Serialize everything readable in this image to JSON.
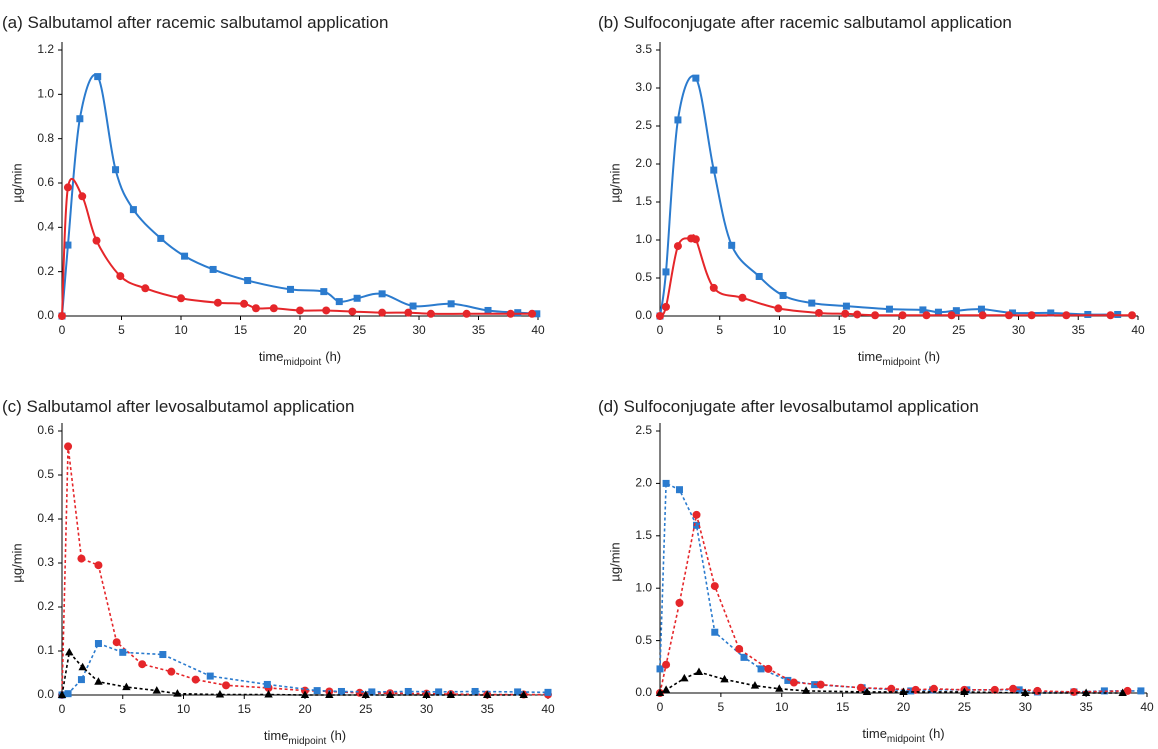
{
  "chart_data": [
    {
      "type": "line",
      "title": "(a) Salbutamol after racemic salbutamol application",
      "ylabel": "µg/min",
      "xlabel": {
        "text": "time",
        "subscript": "midpoint",
        "unit": "(h)"
      },
      "smooth": true,
      "line_style": "solid",
      "xlim": [
        0,
        40
      ],
      "xticks": [
        0,
        5,
        10,
        15,
        20,
        25,
        30,
        35,
        40
      ],
      "ylim": [
        0,
        1.2
      ],
      "yticks": [
        {
          "value": 0,
          "label": "0.0"
        },
        {
          "value": 0.2,
          "label": "0.2"
        },
        {
          "value": 0.4,
          "label": "0.4"
        },
        {
          "value": 0.6,
          "label": "0.6"
        },
        {
          "value": 0.8,
          "label": "0.8"
        },
        {
          "value": 1,
          "label": "1.0"
        },
        {
          "value": 1.2,
          "label": "1.2"
        }
      ],
      "series": [
        {
          "color": "#2b7bce",
          "marker": "square",
          "x": [
            0,
            0.5,
            1.5,
            3,
            4.5,
            6,
            8.3,
            10.3,
            12.7,
            15.6,
            19.2,
            22,
            23.3,
            24.8,
            26.9,
            29.5,
            32.7,
            35.8,
            38.3,
            39.9
          ],
          "values": [
            0,
            0.32,
            0.89,
            1.08,
            0.66,
            0.48,
            0.35,
            0.27,
            0.21,
            0.16,
            0.12,
            0.11,
            0.065,
            0.08,
            0.1,
            0.045,
            0.055,
            0.025,
            0.015,
            0.01
          ]
        },
        {
          "color": "#e5262a",
          "marker": "circle",
          "x": [
            0,
            0.5,
            1.7,
            2.9,
            4.9,
            7,
            10,
            13.1,
            15.3,
            16.3,
            17.8,
            20,
            22.2,
            24.4,
            26.9,
            29.1,
            31,
            34,
            37.7,
            39.5
          ],
          "values": [
            0,
            0.58,
            0.54,
            0.34,
            0.18,
            0.125,
            0.08,
            0.06,
            0.055,
            0.035,
            0.035,
            0.025,
            0.025,
            0.02,
            0.015,
            0.015,
            0.01,
            0.01,
            0.01,
            0.01
          ]
        }
      ]
    },
    {
      "type": "line",
      "title": "(b) Sulfoconjugate after racemic salbutamol application",
      "ylabel": "µg/min",
      "xlabel": {
        "text": "time",
        "subscript": "midpoint",
        "unit": "(h)"
      },
      "smooth": true,
      "line_style": "solid",
      "xlim": [
        0,
        40
      ],
      "xticks": [
        0,
        5,
        10,
        15,
        20,
        25,
        30,
        35,
        40
      ],
      "ylim": [
        0,
        3.5
      ],
      "yticks": [
        {
          "value": 0,
          "label": "0.0"
        },
        {
          "value": 0.5,
          "label": "0.5"
        },
        {
          "value": 1,
          "label": "1.0"
        },
        {
          "value": 1.5,
          "label": "1.5"
        },
        {
          "value": 2,
          "label": "2.0"
        },
        {
          "value": 2.5,
          "label": "2.5"
        },
        {
          "value": 3,
          "label": "3.0"
        },
        {
          "value": 3.5,
          "label": "3.5"
        }
      ],
      "series": [
        {
          "color": "#2b7bce",
          "marker": "square",
          "x": [
            0,
            0.5,
            1.5,
            3,
            4.5,
            6,
            8.3,
            10.3,
            12.7,
            15.6,
            19.2,
            22,
            23.3,
            24.8,
            26.9,
            29.5,
            32.7,
            35.8,
            38.3
          ],
          "values": [
            0,
            0.58,
            2.58,
            3.13,
            1.92,
            0.93,
            0.52,
            0.27,
            0.17,
            0.13,
            0.09,
            0.08,
            0.05,
            0.07,
            0.09,
            0.04,
            0.04,
            0.02,
            0.02
          ]
        },
        {
          "color": "#e5262a",
          "marker": "circle",
          "x": [
            0,
            0.5,
            1.5,
            2.6,
            3,
            4.5,
            6.9,
            9.9,
            13.3,
            15.5,
            16.5,
            18,
            20.3,
            22.3,
            24.4,
            27,
            29.2,
            31.1,
            34,
            37.7,
            39.5
          ],
          "values": [
            0,
            0.12,
            0.92,
            1.02,
            1.01,
            0.37,
            0.24,
            0.1,
            0.04,
            0.03,
            0.02,
            0.01,
            0.01,
            0.01,
            0.01,
            0.01,
            0.01,
            0.01,
            0.01,
            0.01,
            0.01
          ]
        }
      ]
    },
    {
      "type": "line",
      "title": "(c) Salbutamol after levosalbutamol application",
      "ylabel": "µg/min",
      "xlabel": {
        "text": "time",
        "subscript": "midpoint",
        "unit": "(h)"
      },
      "smooth": false,
      "line_style": "dashed",
      "xlim": [
        0,
        40
      ],
      "xticks": [
        0,
        5,
        10,
        15,
        20,
        25,
        30,
        35,
        40
      ],
      "ylim": [
        0,
        0.6
      ],
      "yticks": [
        {
          "value": 0,
          "label": "0.0"
        },
        {
          "value": 0.1,
          "label": "0.1"
        },
        {
          "value": 0.2,
          "label": "0.2"
        },
        {
          "value": 0.3,
          "label": "0.3"
        },
        {
          "value": 0.4,
          "label": "0.4"
        },
        {
          "value": 0.5,
          "label": "0.5"
        },
        {
          "value": 0.6,
          "label": "0.6"
        }
      ],
      "series": [
        {
          "color": "#e5262a",
          "marker": "circle",
          "x": [
            0,
            0.5,
            1.6,
            3,
            4.5,
            6.6,
            9,
            11,
            13.5,
            17,
            20,
            22,
            24.5,
            27,
            30,
            32,
            35,
            38,
            40
          ],
          "values": [
            0,
            0.565,
            0.31,
            0.295,
            0.12,
            0.07,
            0.053,
            0.035,
            0.022,
            0.016,
            0.01,
            0.008,
            0.005,
            0.004,
            0.003,
            0.002,
            0.001,
            0.001,
            0.001
          ]
        },
        {
          "color": "#2b7bce",
          "marker": "square",
          "x": [
            0,
            0.5,
            1.6,
            3,
            5,
            8.3,
            12.2,
            16.9,
            21,
            23,
            25.5,
            28.5,
            31,
            34,
            37.5,
            40
          ],
          "values": [
            0,
            0.003,
            0.035,
            0.117,
            0.097,
            0.092,
            0.043,
            0.024,
            0.01,
            0.008,
            0.007,
            0.008,
            0.007,
            0.008,
            0.007,
            0.006
          ]
        },
        {
          "color": "#000000",
          "marker": "triangle",
          "x": [
            0,
            0.6,
            1.7,
            3,
            5.3,
            7.8,
            9.5,
            13,
            17,
            20,
            22,
            25,
            27,
            30,
            32,
            35,
            38
          ],
          "values": [
            0,
            0.097,
            0.063,
            0.03,
            0.018,
            0.01,
            0.003,
            0.001,
            0.001,
            0,
            0,
            0,
            0,
            0,
            0,
            0,
            0
          ]
        }
      ]
    },
    {
      "type": "line",
      "title": "(d) Sulfoconjugate after levosalbutamol application",
      "ylabel": "µg/min",
      "xlabel": {
        "text": "time",
        "subscript": "midpoint",
        "unit": "(h)"
      },
      "smooth": false,
      "line_style": "dashed",
      "xlim": [
        0,
        40
      ],
      "xticks": [
        0,
        5,
        10,
        15,
        20,
        25,
        30,
        35,
        40
      ],
      "ylim": [
        0,
        2.5
      ],
      "yticks": [
        {
          "value": 0,
          "label": "0.0"
        },
        {
          "value": 0.5,
          "label": "0.5"
        },
        {
          "value": 1,
          "label": "1.0"
        },
        {
          "value": 1.5,
          "label": "1.5"
        },
        {
          "value": 2,
          "label": "2.0"
        },
        {
          "value": 2.5,
          "label": "2.5"
        }
      ],
      "series": [
        {
          "color": "#2b7bce",
          "marker": "square",
          "x": [
            0,
            0.5,
            1.6,
            3,
            4.5,
            6.9,
            8.3,
            10.5,
            12.7,
            16.6,
            20.6,
            22.4,
            25.2,
            29.5,
            31,
            34,
            36.5,
            39.5
          ],
          "values": [
            0.23,
            2,
            1.94,
            1.6,
            0.58,
            0.34,
            0.23,
            0.12,
            0.08,
            0.05,
            0.02,
            0.03,
            0.03,
            0.03,
            0.01,
            0.01,
            0.02,
            0.02
          ]
        },
        {
          "color": "#e5262a",
          "marker": "circle",
          "x": [
            0,
            0.5,
            1.6,
            3,
            4.5,
            6.5,
            8.9,
            11,
            13.2,
            16.5,
            19,
            21,
            22.5,
            25,
            27.5,
            29,
            31,
            34,
            38.4
          ],
          "values": [
            0,
            0.27,
            0.86,
            1.7,
            1.02,
            0.42,
            0.23,
            0.1,
            0.08,
            0.05,
            0.04,
            0.03,
            0.04,
            0.03,
            0.03,
            0.04,
            0.02,
            0.01,
            0.02
          ]
        },
        {
          "color": "#000000",
          "marker": "triangle",
          "x": [
            0,
            0.5,
            2,
            3.2,
            5.3,
            7.8,
            9.8,
            12,
            17,
            20,
            25,
            30,
            35,
            38
          ],
          "values": [
            0,
            0.03,
            0.14,
            0.2,
            0.13,
            0.07,
            0.04,
            0.02,
            0.01,
            0.01,
            0.01,
            0,
            0,
            0
          ]
        }
      ]
    }
  ]
}
